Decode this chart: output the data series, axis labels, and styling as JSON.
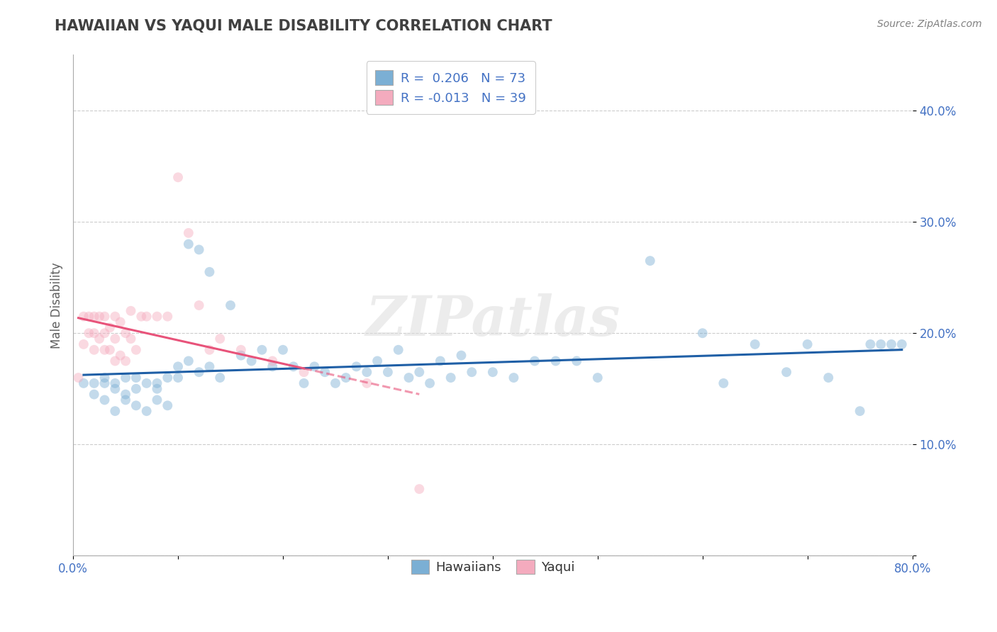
{
  "title": "HAWAIIAN VS YAQUI MALE DISABILITY CORRELATION CHART",
  "source": "Source: ZipAtlas.com",
  "ylabel": "Male Disability",
  "xlim": [
    0.0,
    0.8
  ],
  "ylim": [
    0.0,
    0.45
  ],
  "xticks": [
    0.0,
    0.1,
    0.2,
    0.3,
    0.4,
    0.5,
    0.6,
    0.7,
    0.8
  ],
  "yticks": [
    0.0,
    0.1,
    0.2,
    0.3,
    0.4
  ],
  "hawaiians_x": [
    0.01,
    0.02,
    0.02,
    0.03,
    0.03,
    0.03,
    0.04,
    0.04,
    0.04,
    0.05,
    0.05,
    0.05,
    0.06,
    0.06,
    0.06,
    0.07,
    0.07,
    0.08,
    0.08,
    0.08,
    0.09,
    0.09,
    0.1,
    0.1,
    0.11,
    0.11,
    0.12,
    0.12,
    0.13,
    0.13,
    0.14,
    0.15,
    0.16,
    0.17,
    0.18,
    0.19,
    0.2,
    0.21,
    0.22,
    0.23,
    0.24,
    0.25,
    0.26,
    0.27,
    0.28,
    0.29,
    0.3,
    0.31,
    0.32,
    0.33,
    0.34,
    0.35,
    0.36,
    0.37,
    0.38,
    0.4,
    0.42,
    0.44,
    0.46,
    0.48,
    0.5,
    0.55,
    0.6,
    0.62,
    0.65,
    0.68,
    0.7,
    0.72,
    0.75,
    0.76,
    0.77,
    0.78,
    0.79
  ],
  "hawaiians_y": [
    0.155,
    0.145,
    0.155,
    0.155,
    0.16,
    0.14,
    0.155,
    0.13,
    0.15,
    0.145,
    0.16,
    0.14,
    0.16,
    0.135,
    0.15,
    0.155,
    0.13,
    0.155,
    0.14,
    0.15,
    0.16,
    0.135,
    0.16,
    0.17,
    0.28,
    0.175,
    0.275,
    0.165,
    0.255,
    0.17,
    0.16,
    0.225,
    0.18,
    0.175,
    0.185,
    0.17,
    0.185,
    0.17,
    0.155,
    0.17,
    0.165,
    0.155,
    0.16,
    0.17,
    0.165,
    0.175,
    0.165,
    0.185,
    0.16,
    0.165,
    0.155,
    0.175,
    0.16,
    0.18,
    0.165,
    0.165,
    0.16,
    0.175,
    0.175,
    0.175,
    0.16,
    0.265,
    0.2,
    0.155,
    0.19,
    0.165,
    0.19,
    0.16,
    0.13,
    0.19,
    0.19,
    0.19,
    0.19
  ],
  "yaqui_x": [
    0.005,
    0.01,
    0.01,
    0.015,
    0.015,
    0.02,
    0.02,
    0.02,
    0.025,
    0.025,
    0.03,
    0.03,
    0.03,
    0.035,
    0.035,
    0.04,
    0.04,
    0.04,
    0.045,
    0.045,
    0.05,
    0.05,
    0.055,
    0.055,
    0.06,
    0.065,
    0.07,
    0.08,
    0.09,
    0.1,
    0.11,
    0.12,
    0.13,
    0.14,
    0.16,
    0.19,
    0.22,
    0.28,
    0.33
  ],
  "yaqui_y": [
    0.16,
    0.19,
    0.215,
    0.215,
    0.2,
    0.2,
    0.215,
    0.185,
    0.215,
    0.195,
    0.2,
    0.185,
    0.215,
    0.205,
    0.185,
    0.195,
    0.215,
    0.175,
    0.21,
    0.18,
    0.2,
    0.175,
    0.195,
    0.22,
    0.185,
    0.215,
    0.215,
    0.215,
    0.215,
    0.34,
    0.29,
    0.225,
    0.185,
    0.195,
    0.185,
    0.175,
    0.165,
    0.155,
    0.06
  ],
  "hawaiians_color": "#7BAFD4",
  "yaqui_color": "#F4ABBE",
  "hawaiians_line_color": "#1F5FA6",
  "yaqui_line_color": "#E8537A",
  "R_hawaiians": 0.206,
  "N_hawaiians": 73,
  "R_yaqui": -0.013,
  "N_yaqui": 39,
  "watermark": "ZIPatlas",
  "legend_label_hawaiians": "Hawaiians",
  "legend_label_yaqui": "Yaqui",
  "title_color": "#404040",
  "source_color": "#808080",
  "axis_label_color": "#606060",
  "tick_color": "#4472C4",
  "grid_color": "#CCCCCC",
  "marker_size": 100,
  "marker_alpha": 0.45,
  "line_width": 2.2
}
